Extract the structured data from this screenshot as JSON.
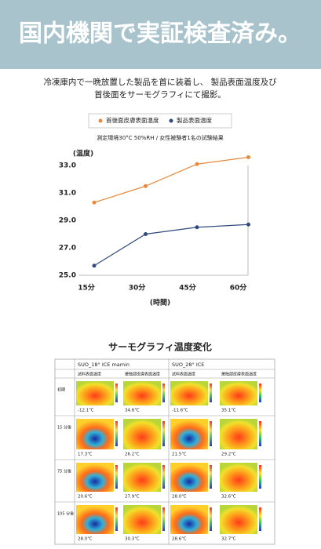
{
  "header": {
    "title": "国内機関で実証検査済み。"
  },
  "intro": [
    "冷凍庫内で一晩放置した製品を首に装着し、 製品表面温度及び",
    "首後面をサーモグラフィにて撮影。"
  ],
  "chart_data": {
    "type": "line",
    "note": "測定環境30°C 50%RH / 女性被験者1名の試験結果",
    "y_label": "(温度)",
    "x_label": "(時間)",
    "categories": [
      "15分",
      "30分",
      "45分",
      "60分"
    ],
    "series": [
      {
        "name": "首後面皮膚表面温度",
        "color": "#e8883a",
        "values": [
          30.3,
          31.5,
          33.1,
          33.6
        ]
      },
      {
        "name": "製品表面温度",
        "color": "#2f4a7e",
        "values": [
          25.7,
          28.0,
          28.5,
          28.7
        ]
      }
    ],
    "ylim": [
      25,
      33
    ],
    "yticks": [
      {
        "value": 25,
        "label": "25.0"
      },
      {
        "value": 27,
        "label": "27.0"
      },
      {
        "value": 29,
        "label": "29.0"
      },
      {
        "value": 31,
        "label": "31.0"
      },
      {
        "value": 33,
        "label": "33.0"
      }
    ],
    "grid": false
  },
  "section_title": "サーモグラフィ温度変化",
  "table": {
    "headers": [
      "SUO_18° ICE mamin",
      "SUO_28° ICE"
    ],
    "subheaders": [
      "試料表面温度",
      "接触部皮膚表面温度",
      "試料表面温度",
      "接触部皮膚表面温度"
    ],
    "rows": [
      {
        "label": "初期",
        "cells": [
          "-12.1℃",
          "34.6℃",
          "-11.6℃",
          "35.1℃"
        ]
      },
      {
        "label": "15 分後",
        "cells": [
          "17.3℃",
          "26.2℃",
          "21.5℃",
          "29.2℃"
        ]
      },
      {
        "label": "75 分後",
        "cells": [
          "20.6℃",
          "27.9℃",
          "28.0℃",
          "32.6℃"
        ]
      },
      {
        "label": "105 分後",
        "cells": [
          "28.0℃",
          "30.3℃",
          "28.6℃",
          "32.7℃"
        ]
      }
    ]
  }
}
